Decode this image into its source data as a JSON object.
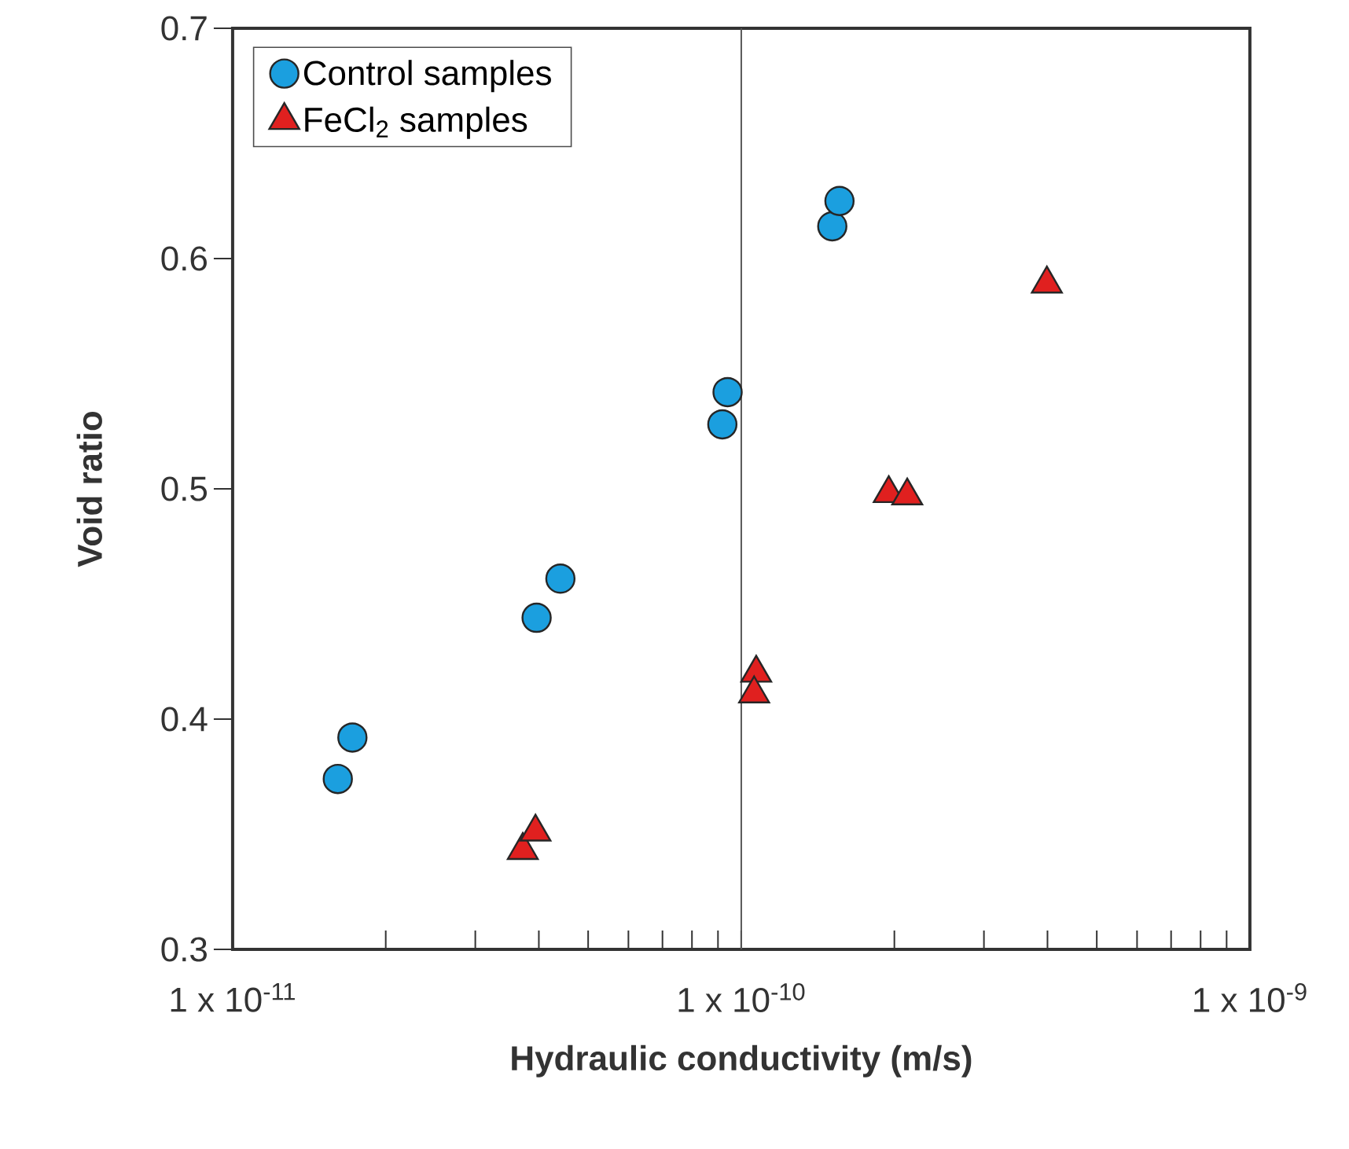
{
  "chart_data": {
    "type": "scatter",
    "xlabel": "Hydraulic conductivity (m/s)",
    "ylabel": "Void ratio",
    "log": "x",
    "xlim": [
      1e-11,
      1e-09
    ],
    "ylim": [
      0.3,
      0.7
    ],
    "xticks": [
      {
        "value": 1e-11,
        "label": "1 x 10$^{-11}$"
      },
      {
        "value": 1e-10,
        "label": "1 x 10$^{-10}$"
      },
      {
        "value": 1e-09,
        "label": "1 x 10$^{-9}$"
      }
    ],
    "yticks": [
      0.3,
      0.4,
      0.5,
      0.6,
      0.7
    ],
    "legend": "top left",
    "ref_lines": [
      {
        "axis": "x",
        "value": 1e-10,
        "color": "#555555"
      }
    ],
    "series": [
      {
        "name": "Control samples",
        "color": "#1b9fdf",
        "marker": "circle",
        "x": [
          1.61e-11,
          1.72e-11,
          3.96e-11,
          4.41e-11,
          9.18e-11,
          9.4e-11,
          1.51e-10,
          1.56e-10
        ],
        "values": [
          0.374,
          0.392,
          0.444,
          0.461,
          0.528,
          0.542,
          0.614,
          0.625
        ]
      },
      {
        "name": "FeCl$_{2}$ samples",
        "color": "#e0201f",
        "marker": "triangle",
        "x": [
          3.72e-11,
          3.94e-11,
          1.07e-10,
          1.06e-10,
          1.95e-10,
          2.12e-10,
          3.99e-10
        ],
        "values": [
          0.343,
          0.351,
          0.42,
          0.411,
          0.498,
          0.497,
          0.589
        ]
      }
    ]
  }
}
